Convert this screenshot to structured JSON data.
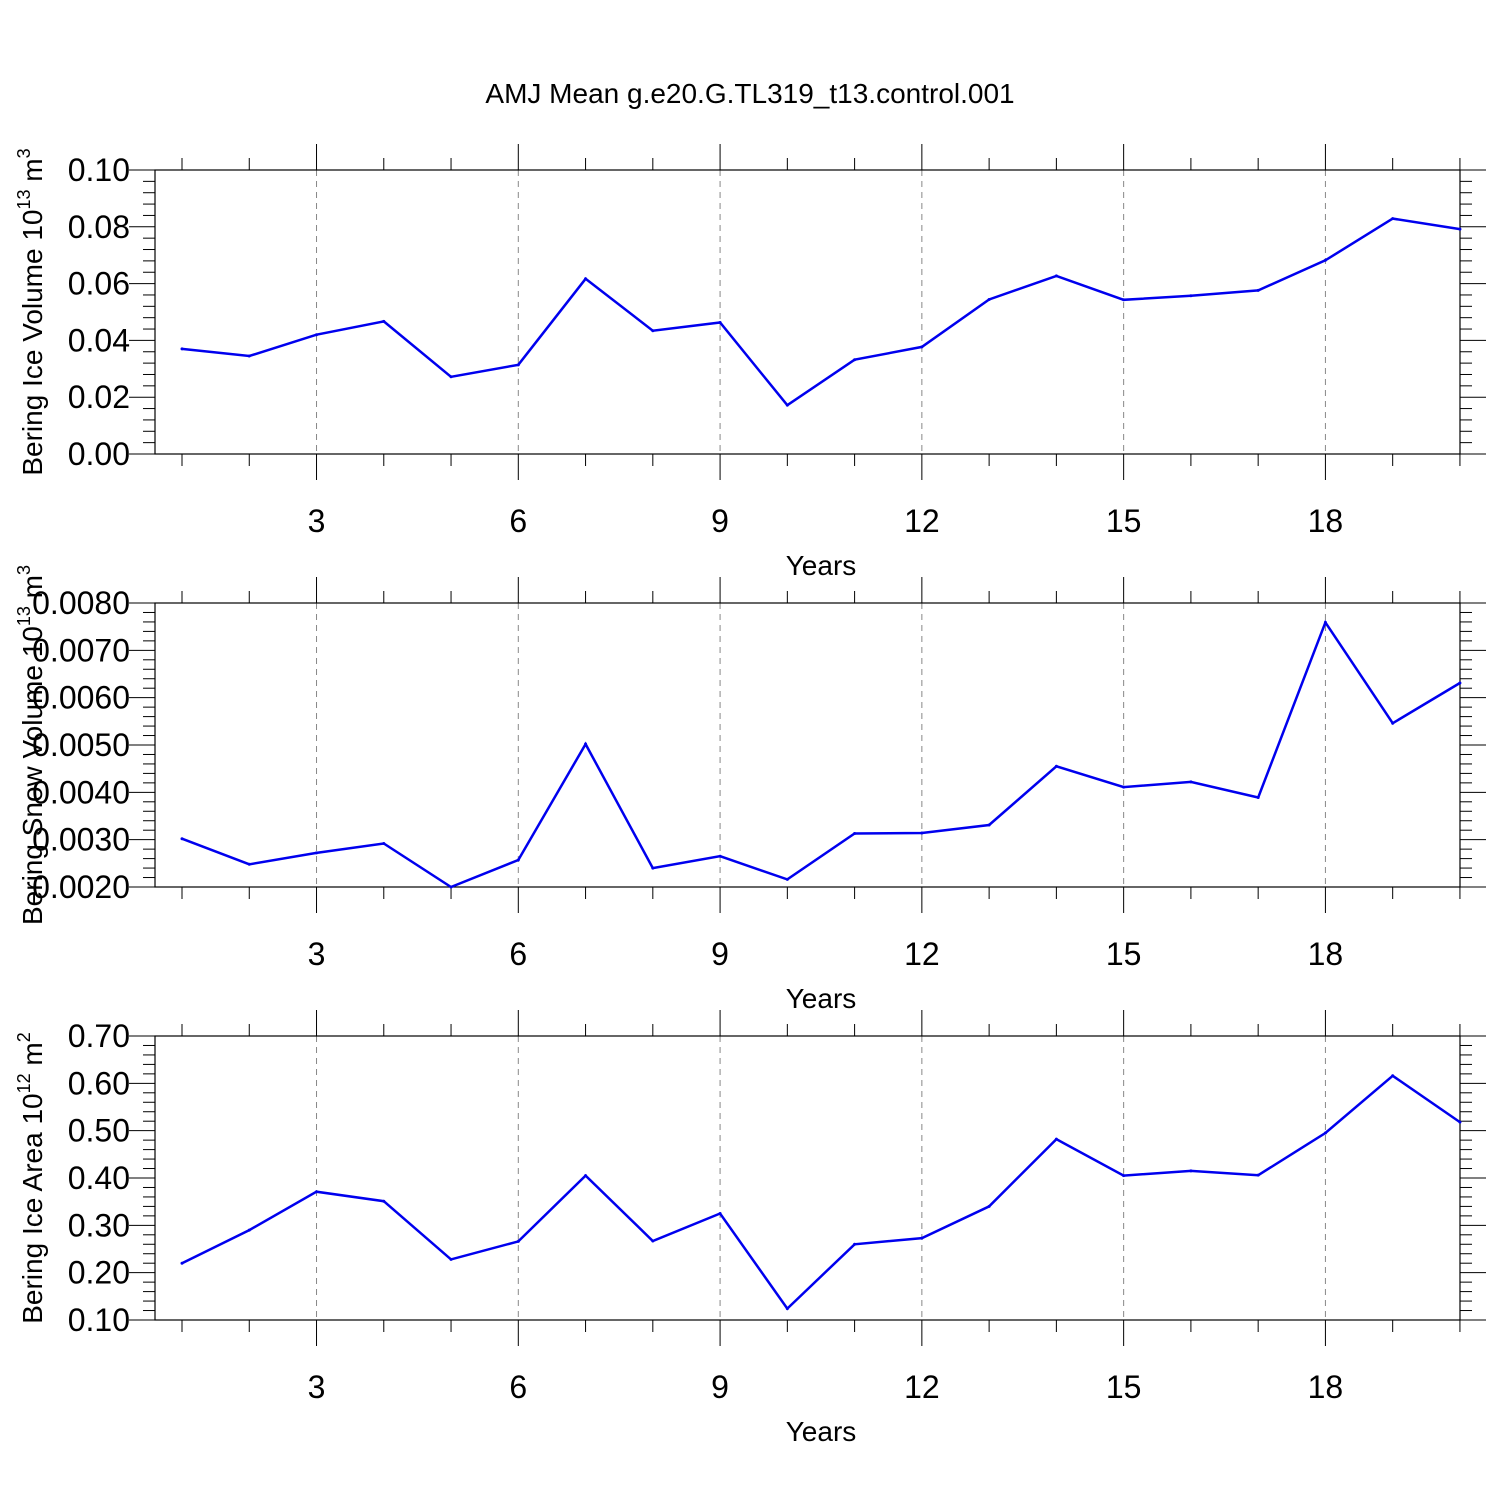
{
  "title": "AMJ Mean g.e20.G.TL319_t13.control.001",
  "chart_data": [
    {
      "type": "line",
      "ylabel": "Bering Ice Volume 10",
      "ylabel_sup": "13",
      "ylabel_unit": " m",
      "ylabel_unit_sup": "3",
      "xlabel": "Years",
      "xlim": [
        1,
        20
      ],
      "ylim": [
        0.0,
        0.1
      ],
      "y_ticks": [
        0.0,
        0.02,
        0.04,
        0.06,
        0.08,
        0.1
      ],
      "y_tick_labels": [
        "0.00",
        "0.02",
        "0.04",
        "0.06",
        "0.08",
        "0.10"
      ],
      "x_ticks": [
        3,
        6,
        9,
        12,
        15,
        18
      ],
      "x_tick_labels": [
        "3",
        "6",
        "9",
        "12",
        "15",
        "18"
      ],
      "grid": "vertical dashed at major x ticks",
      "series": [
        {
          "color": "#0000ee",
          "x": [
            1,
            2,
            3,
            4,
            5,
            6,
            7,
            8,
            9,
            10,
            11,
            12,
            13,
            14,
            15,
            16,
            17,
            18,
            19,
            20
          ],
          "values": [
            0.037,
            0.0345,
            0.042,
            0.0467,
            0.0272,
            0.0314,
            0.0617,
            0.0434,
            0.0463,
            0.0172,
            0.0332,
            0.0377,
            0.0544,
            0.0627,
            0.0543,
            0.0557,
            0.0576,
            0.0682,
            0.0829,
            0.0792
          ]
        }
      ]
    },
    {
      "type": "line",
      "ylabel": "Bering Snow Volume 10",
      "ylabel_sup": "13",
      "ylabel_unit": " m",
      "ylabel_unit_sup": "3",
      "xlabel": "Years",
      "xlim": [
        1,
        20
      ],
      "ylim": [
        0.002,
        0.008
      ],
      "y_ticks": [
        0.002,
        0.003,
        0.004,
        0.005,
        0.006,
        0.007,
        0.008
      ],
      "y_tick_labels": [
        "0.0020",
        "0.0030",
        "0.0040",
        "0.0050",
        "0.0060",
        "0.0070",
        "0.0080"
      ],
      "x_ticks": [
        3,
        6,
        9,
        12,
        15,
        18
      ],
      "x_tick_labels": [
        "3",
        "6",
        "9",
        "12",
        "15",
        "18"
      ],
      "grid": "vertical dashed at major x ticks",
      "series": [
        {
          "color": "#0000ee",
          "x": [
            1,
            2,
            3,
            4,
            5,
            6,
            7,
            8,
            9,
            10,
            11,
            12,
            13,
            14,
            15,
            16,
            17,
            18,
            19,
            20
          ],
          "values": [
            0.00302,
            0.00248,
            0.00272,
            0.00292,
            0.002,
            0.00257,
            0.00502,
            0.0024,
            0.00265,
            0.00216,
            0.00313,
            0.00314,
            0.00331,
            0.00455,
            0.00411,
            0.00422,
            0.00389,
            0.00759,
            0.00546,
            0.00631
          ]
        }
      ]
    },
    {
      "type": "line",
      "ylabel": "Bering Ice Area 10",
      "ylabel_sup": "12",
      "ylabel_unit": " m",
      "ylabel_unit_sup": "2",
      "xlabel": "Years",
      "xlim": [
        1,
        20
      ],
      "ylim": [
        0.1,
        0.7
      ],
      "y_ticks": [
        0.1,
        0.2,
        0.3,
        0.4,
        0.5,
        0.6,
        0.7
      ],
      "y_tick_labels": [
        "0.10",
        "0.20",
        "0.30",
        "0.40",
        "0.50",
        "0.60",
        "0.70"
      ],
      "x_ticks": [
        3,
        6,
        9,
        12,
        15,
        18
      ],
      "x_tick_labels": [
        "3",
        "6",
        "9",
        "12",
        "15",
        "18"
      ],
      "grid": "vertical dashed at major x ticks",
      "series": [
        {
          "color": "#0000ee",
          "x": [
            1,
            2,
            3,
            4,
            5,
            6,
            7,
            8,
            9,
            10,
            11,
            12,
            13,
            14,
            15,
            16,
            17,
            18,
            19,
            20
          ],
          "values": [
            0.22,
            0.29,
            0.371,
            0.351,
            0.228,
            0.266,
            0.405,
            0.267,
            0.325,
            0.124,
            0.26,
            0.273,
            0.34,
            0.482,
            0.405,
            0.415,
            0.406,
            0.495,
            0.616,
            0.518
          ]
        }
      ]
    }
  ]
}
